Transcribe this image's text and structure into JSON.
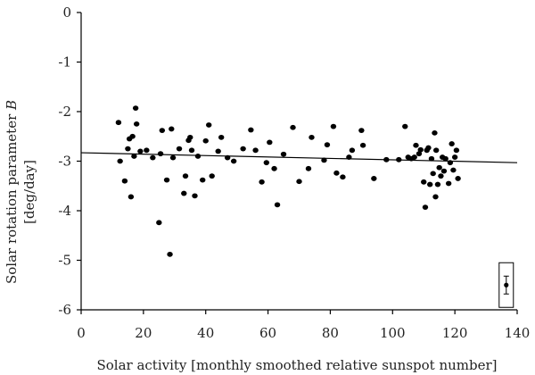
{
  "chart_data": {
    "type": "scatter",
    "xlabel": "Solar activity [monthly smoothed relative sunspot number]",
    "ylabel_line1": "Solar rotation parameter ",
    "ylabel_italic": "B",
    "ylabel_line2": "[deg/day]",
    "xlim": [
      0,
      140
    ],
    "ylim": [
      -6,
      0
    ],
    "x_ticks": [
      0,
      20,
      40,
      60,
      80,
      100,
      120,
      140
    ],
    "x_tick_labels": [
      "0",
      "20",
      "40",
      "60",
      "80",
      "100",
      "120",
      "140"
    ],
    "y_ticks": [
      0,
      -1,
      -2,
      -3,
      -4,
      -5,
      -6
    ],
    "y_tick_labels": [
      "0",
      "-1",
      "-2",
      "-3",
      "-4",
      "-5",
      "-6"
    ],
    "trendline": {
      "x": [
        0,
        140
      ],
      "y": [
        -2.83,
        -3.03
      ]
    },
    "error_bar_example": {
      "x": 136.5,
      "y": -5.5,
      "err": 0.18
    },
    "points": [
      [
        12,
        -2.22
      ],
      [
        12.5,
        -3.0
      ],
      [
        14,
        -3.4
      ],
      [
        15,
        -2.75
      ],
      [
        15.5,
        -2.55
      ],
      [
        16,
        -3.72
      ],
      [
        16.5,
        -2.5
      ],
      [
        17,
        -2.9
      ],
      [
        17.5,
        -1.93
      ],
      [
        17.8,
        -2.25
      ],
      [
        19,
        -2.8
      ],
      [
        21,
        -2.78
      ],
      [
        23,
        -2.93
      ],
      [
        25,
        -4.24
      ],
      [
        25.5,
        -2.85
      ],
      [
        26,
        -2.38
      ],
      [
        27.5,
        -3.38
      ],
      [
        28.5,
        -4.88
      ],
      [
        29,
        -2.35
      ],
      [
        29.5,
        -2.93
      ],
      [
        31.5,
        -2.75
      ],
      [
        33,
        -3.65
      ],
      [
        33.5,
        -3.3
      ],
      [
        34.5,
        -2.58
      ],
      [
        35,
        -2.52
      ],
      [
        35.5,
        -2.78
      ],
      [
        36.5,
        -3.7
      ],
      [
        37.5,
        -2.9
      ],
      [
        39,
        -3.38
      ],
      [
        40,
        -2.59
      ],
      [
        41,
        -2.27
      ],
      [
        42,
        -3.3
      ],
      [
        44,
        -2.8
      ],
      [
        45,
        -2.52
      ],
      [
        47,
        -2.93
      ],
      [
        49,
        -3.0
      ],
      [
        52,
        -2.75
      ],
      [
        54.5,
        -2.37
      ],
      [
        56,
        -2.78
      ],
      [
        58,
        -3.42
      ],
      [
        59.5,
        -3.03
      ],
      [
        60.5,
        -2.62
      ],
      [
        62,
        -3.15
      ],
      [
        63,
        -3.88
      ],
      [
        65,
        -2.86
      ],
      [
        68,
        -2.32
      ],
      [
        70,
        -3.41
      ],
      [
        73,
        -3.15
      ],
      [
        74,
        -2.52
      ],
      [
        78,
        -2.98
      ],
      [
        79,
        -2.67
      ],
      [
        81,
        -2.3
      ],
      [
        82,
        -3.24
      ],
      [
        84,
        -3.32
      ],
      [
        86,
        -2.92
      ],
      [
        87,
        -2.78
      ],
      [
        90,
        -2.38
      ],
      [
        90.5,
        -2.68
      ],
      [
        94,
        -3.35
      ],
      [
        98,
        -2.97
      ],
      [
        102,
        -2.97
      ],
      [
        104,
        -2.3
      ],
      [
        105,
        -2.92
      ],
      [
        106,
        -2.95
      ],
      [
        107,
        -2.92
      ],
      [
        107.5,
        -2.68
      ],
      [
        108.5,
        -2.85
      ],
      [
        109,
        -2.77
      ],
      [
        110,
        -3.42
      ],
      [
        110.5,
        -3.93
      ],
      [
        111,
        -2.78
      ],
      [
        111.5,
        -2.73
      ],
      [
        112,
        -3.47
      ],
      [
        112.5,
        -2.95
      ],
      [
        113,
        -3.25
      ],
      [
        113.5,
        -2.43
      ],
      [
        113.8,
        -3.72
      ],
      [
        114,
        -2.78
      ],
      [
        114.5,
        -3.47
      ],
      [
        115,
        -3.13
      ],
      [
        115.5,
        -3.3
      ],
      [
        116,
        -2.92
      ],
      [
        116.5,
        -3.2
      ],
      [
        117,
        -2.95
      ],
      [
        118,
        -3.45
      ],
      [
        118.5,
        -3.03
      ],
      [
        119,
        -2.65
      ],
      [
        119.5,
        -3.18
      ],
      [
        120,
        -2.92
      ],
      [
        120.5,
        -2.78
      ],
      [
        121,
        -3.35
      ]
    ]
  }
}
